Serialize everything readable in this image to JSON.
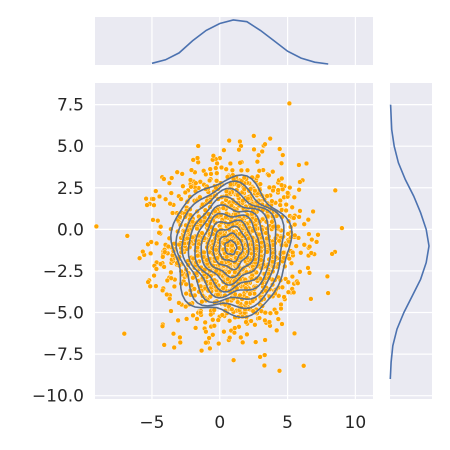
{
  "chart_data": {
    "type": "scatter",
    "subtype": "jointplot-with-kde",
    "title": "",
    "xlabel": "",
    "ylabel": "",
    "xlim": [
      -9.2,
      11.3
    ],
    "ylim": [
      -10.2,
      8.8
    ],
    "x_ticks": [
      {
        "value": -5,
        "label": "−5"
      },
      {
        "value": 0,
        "label": "0"
      },
      {
        "value": 5,
        "label": "5"
      },
      {
        "value": 10,
        "label": "10"
      }
    ],
    "y_ticks": [
      {
        "value": 7.5,
        "label": "7.5"
      },
      {
        "value": 5.0,
        "label": "5.0"
      },
      {
        "value": 2.5,
        "label": "2.5"
      },
      {
        "value": 0.0,
        "label": "0.0"
      },
      {
        "value": -2.5,
        "label": "−2.5"
      },
      {
        "value": -5.0,
        "label": "−5.0"
      },
      {
        "value": -7.5,
        "label": "−7.5"
      },
      {
        "value": -10.0,
        "label": "−10.0"
      }
    ],
    "grid": true,
    "scatter": {
      "n_points": 1500,
      "center": [
        1.0,
        -1.0
      ],
      "std": [
        2.5,
        2.5
      ],
      "color": "#FFA500",
      "edge_color": "#ffffff"
    },
    "contour": {
      "center": [
        0.8,
        -1.1
      ],
      "levels": 10,
      "outer_radius": [
        4.3,
        4.1
      ],
      "color": "#5A6E8A"
    },
    "marginal_x_kde": {
      "x": [
        -5,
        -4,
        -3,
        -2,
        -1,
        0,
        1,
        2,
        3,
        4,
        5,
        6,
        7,
        8
      ],
      "density": [
        0.005,
        0.015,
        0.035,
        0.07,
        0.1,
        0.12,
        0.13,
        0.125,
        0.1,
        0.07,
        0.04,
        0.02,
        0.008,
        0.003
      ],
      "color": "#4C72B0"
    },
    "marginal_y_kde": {
      "y": [
        7.5,
        6,
        5,
        4,
        3,
        2,
        1,
        0,
        -1,
        -2,
        -3,
        -4,
        -5,
        -6,
        -7,
        -8,
        -9
      ],
      "density": [
        0.002,
        0.006,
        0.015,
        0.03,
        0.055,
        0.085,
        0.11,
        0.13,
        0.14,
        0.13,
        0.11,
        0.08,
        0.05,
        0.025,
        0.01,
        0.004,
        0.001
      ],
      "color": "#4C72B0"
    },
    "colors": {
      "panel_bg": "#EAEAF2",
      "grid": "#ffffff",
      "point": "#FFA500",
      "contour": "#5A6E8A",
      "kde": "#4C72B0"
    }
  }
}
